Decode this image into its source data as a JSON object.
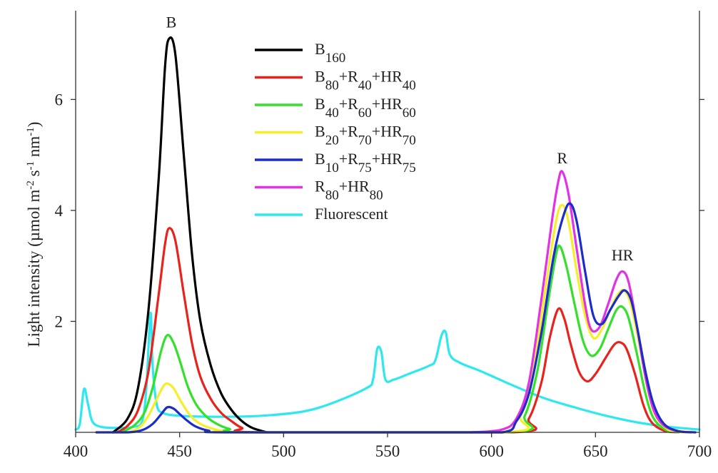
{
  "chart_data": {
    "type": "line",
    "title": "",
    "xlabel": "",
    "ylabel": "Light intensity (µmol m-2 s-1 nm-1)",
    "ylabel_parts": [
      {
        "text": "Light intensity (µmol m",
        "sup": false
      },
      {
        "text": "-2",
        "sup": true
      },
      {
        "text": " s",
        "sup": false
      },
      {
        "text": "-1",
        "sup": true
      },
      {
        "text": " nm",
        "sup": false
      },
      {
        "text": "-1",
        "sup": true
      },
      {
        "text": ")",
        "sup": false
      }
    ],
    "xlim": [
      400,
      700
    ],
    "ylim": [
      0,
      7.6
    ],
    "xticks": [
      400,
      450,
      500,
      550,
      600,
      650,
      700
    ],
    "yticks": [
      2,
      4,
      6
    ],
    "grid": false,
    "legend_position": "top-center",
    "annotations": [
      {
        "text": "B",
        "x": 446,
        "y": 7.3
      },
      {
        "text": "R",
        "x": 634,
        "y": 4.85
      },
      {
        "text": "HR",
        "x": 663,
        "y": 3.1
      }
    ],
    "series": [
      {
        "name": "B160",
        "label_parts": [
          {
            "text": "B",
            "sub": false
          },
          {
            "text": "160",
            "sub": true
          }
        ],
        "color": "#000000",
        "points": [
          [
            418,
            0
          ],
          [
            425,
            0.25
          ],
          [
            430,
            0.8
          ],
          [
            435,
            2.2
          ],
          [
            440,
            4.6
          ],
          [
            443,
            6.6
          ],
          [
            445,
            7.1
          ],
          [
            448,
            6.8
          ],
          [
            452,
            5.0
          ],
          [
            456,
            3.2
          ],
          [
            460,
            2.0
          ],
          [
            465,
            1.2
          ],
          [
            470,
            0.7
          ],
          [
            475,
            0.4
          ],
          [
            480,
            0.2
          ],
          [
            485,
            0.08
          ],
          [
            492,
            0
          ]
        ]
      },
      {
        "name": "B80+R40+HR40",
        "label_parts": [
          {
            "text": "B",
            "sub": false
          },
          {
            "text": "80",
            "sub": true
          },
          {
            "text": "+R",
            "sub": false
          },
          {
            "text": "40",
            "sub": true
          },
          {
            "text": "+HR",
            "sub": false
          },
          {
            "text": "40",
            "sub": true
          }
        ],
        "color": "#e8231c",
        "points": [
          [
            420,
            0
          ],
          [
            425,
            0.12
          ],
          [
            430,
            0.4
          ],
          [
            435,
            1.1
          ],
          [
            440,
            2.5
          ],
          [
            443,
            3.4
          ],
          [
            445,
            3.68
          ],
          [
            448,
            3.45
          ],
          [
            452,
            2.5
          ],
          [
            456,
            1.6
          ],
          [
            460,
            1.0
          ],
          [
            465,
            0.6
          ],
          [
            470,
            0.35
          ],
          [
            475,
            0.2
          ],
          [
            480,
            0.08
          ],
          [
            488,
            0
          ],
          [
            610,
            0
          ],
          [
            618,
            0.25
          ],
          [
            624,
            0.9
          ],
          [
            628,
            1.7
          ],
          [
            632,
            2.22
          ],
          [
            635,
            2.05
          ],
          [
            638,
            1.6
          ],
          [
            642,
            1.1
          ],
          [
            646,
            0.92
          ],
          [
            650,
            1.05
          ],
          [
            655,
            1.35
          ],
          [
            659,
            1.58
          ],
          [
            662,
            1.62
          ],
          [
            665,
            1.5
          ],
          [
            669,
            1.05
          ],
          [
            673,
            0.5
          ],
          [
            677,
            0.18
          ],
          [
            683,
            0.03
          ],
          [
            690,
            0
          ]
        ]
      },
      {
        "name": "B40+R60+HR60",
        "label_parts": [
          {
            "text": "B",
            "sub": false
          },
          {
            "text": "40",
            "sub": true
          },
          {
            "text": "+R",
            "sub": false
          },
          {
            "text": "60",
            "sub": true
          },
          {
            "text": "+HR",
            "sub": false
          },
          {
            "text": "60",
            "sub": true
          }
        ],
        "color": "#35e02b",
        "points": [
          [
            422,
            0
          ],
          [
            428,
            0.12
          ],
          [
            433,
            0.35
          ],
          [
            437,
            0.8
          ],
          [
            441,
            1.45
          ],
          [
            444,
            1.75
          ],
          [
            447,
            1.62
          ],
          [
            450,
            1.3
          ],
          [
            454,
            0.82
          ],
          [
            458,
            0.5
          ],
          [
            463,
            0.28
          ],
          [
            468,
            0.15
          ],
          [
            474,
            0.06
          ],
          [
            482,
            0
          ],
          [
            608,
            0
          ],
          [
            616,
            0.3
          ],
          [
            622,
            1.1
          ],
          [
            627,
            2.3
          ],
          [
            631,
            3.2
          ],
          [
            633,
            3.35
          ],
          [
            636,
            3.0
          ],
          [
            640,
            2.3
          ],
          [
            644,
            1.65
          ],
          [
            648,
            1.38
          ],
          [
            652,
            1.5
          ],
          [
            656,
            1.85
          ],
          [
            660,
            2.2
          ],
          [
            663,
            2.26
          ],
          [
            666,
            2.05
          ],
          [
            670,
            1.4
          ],
          [
            674,
            0.7
          ],
          [
            678,
            0.25
          ],
          [
            684,
            0.04
          ],
          [
            690,
            0
          ]
        ]
      },
      {
        "name": "B20+R70+HR70",
        "label_parts": [
          {
            "text": "B",
            "sub": false
          },
          {
            "text": "20",
            "sub": true
          },
          {
            "text": "+R",
            "sub": false
          },
          {
            "text": "70",
            "sub": true
          },
          {
            "text": "+HR",
            "sub": false
          },
          {
            "text": "70",
            "sub": true
          }
        ],
        "color": "#f5ee28",
        "points": [
          [
            426,
            0
          ],
          [
            431,
            0.1
          ],
          [
            435,
            0.3
          ],
          [
            439,
            0.6
          ],
          [
            442,
            0.82
          ],
          [
            444,
            0.88
          ],
          [
            447,
            0.8
          ],
          [
            450,
            0.6
          ],
          [
            454,
            0.36
          ],
          [
            458,
            0.2
          ],
          [
            463,
            0.1
          ],
          [
            470,
            0.03
          ],
          [
            478,
            0
          ],
          [
            606,
            0
          ],
          [
            614,
            0.3
          ],
          [
            620,
            1.1
          ],
          [
            626,
            2.6
          ],
          [
            631,
            3.8
          ],
          [
            634,
            4.1
          ],
          [
            637,
            3.8
          ],
          [
            641,
            2.9
          ],
          [
            645,
            2.1
          ],
          [
            649,
            1.7
          ],
          [
            653,
            1.85
          ],
          [
            657,
            2.2
          ],
          [
            661,
            2.5
          ],
          [
            664,
            2.55
          ],
          [
            667,
            2.3
          ],
          [
            671,
            1.6
          ],
          [
            675,
            0.8
          ],
          [
            679,
            0.3
          ],
          [
            685,
            0.05
          ],
          [
            692,
            0
          ]
        ]
      },
      {
        "name": "B10+R75+HR75",
        "label_parts": [
          {
            "text": "B",
            "sub": false
          },
          {
            "text": "10",
            "sub": true
          },
          {
            "text": "+R",
            "sub": false
          },
          {
            "text": "75",
            "sub": true
          },
          {
            "text": "+HR",
            "sub": false
          },
          {
            "text": "75",
            "sub": true
          }
        ],
        "color": "#1c2cc8",
        "points": [
          [
            410,
            0
          ],
          [
            425,
            0
          ],
          [
            432,
            0.04
          ],
          [
            437,
            0.15
          ],
          [
            441,
            0.32
          ],
          [
            444,
            0.45
          ],
          [
            447,
            0.43
          ],
          [
            450,
            0.33
          ],
          [
            454,
            0.2
          ],
          [
            458,
            0.1
          ],
          [
            464,
            0.03
          ],
          [
            472,
            0
          ],
          [
            570,
            0
          ],
          [
            605,
            0
          ],
          [
            612,
            0.2
          ],
          [
            618,
            0.7
          ],
          [
            624,
            1.8
          ],
          [
            630,
            3.2
          ],
          [
            635,
            3.95
          ],
          [
            638,
            4.12
          ],
          [
            641,
            3.8
          ],
          [
            645,
            2.9
          ],
          [
            649,
            2.1
          ],
          [
            653,
            1.95
          ],
          [
            657,
            2.2
          ],
          [
            661,
            2.45
          ],
          [
            664,
            2.56
          ],
          [
            667,
            2.4
          ],
          [
            670,
            1.9
          ],
          [
            674,
            1.1
          ],
          [
            678,
            0.5
          ],
          [
            683,
            0.15
          ],
          [
            690,
            0.02
          ],
          [
            698,
            0
          ]
        ]
      },
      {
        "name": "R80+HR80",
        "label_parts": [
          {
            "text": "R",
            "sub": false
          },
          {
            "text": "80",
            "sub": true
          },
          {
            "text": "+HR",
            "sub": false
          },
          {
            "text": "80",
            "sub": true
          }
        ],
        "color": "#e331e6",
        "points": [
          [
            590,
            0
          ],
          [
            605,
            0.05
          ],
          [
            612,
            0.25
          ],
          [
            618,
            0.9
          ],
          [
            624,
            2.4
          ],
          [
            629,
            3.8
          ],
          [
            632,
            4.5
          ],
          [
            634,
            4.7
          ],
          [
            637,
            4.3
          ],
          [
            641,
            3.3
          ],
          [
            645,
            2.3
          ],
          [
            648,
            1.85
          ],
          [
            652,
            1.9
          ],
          [
            656,
            2.3
          ],
          [
            660,
            2.75
          ],
          [
            663,
            2.9
          ],
          [
            666,
            2.7
          ],
          [
            670,
            1.9
          ],
          [
            674,
            1.0
          ],
          [
            678,
            0.4
          ],
          [
            683,
            0.12
          ],
          [
            690,
            0.02
          ],
          [
            696,
            0
          ]
        ]
      },
      {
        "name": "Fluorescent",
        "label_parts": [
          {
            "text": "Fluorescent",
            "sub": false
          }
        ],
        "color": "#2de8f0",
        "points": [
          [
            400,
            0.05
          ],
          [
            402,
            0.15
          ],
          [
            404,
            0.78
          ],
          [
            406,
            0.5
          ],
          [
            408,
            0.2
          ],
          [
            412,
            0.1
          ],
          [
            420,
            0.08
          ],
          [
            428,
            0.1
          ],
          [
            432,
            0.2
          ],
          [
            434,
            0.8
          ],
          [
            436,
            2.15
          ],
          [
            437,
            1.2
          ],
          [
            439,
            0.5
          ],
          [
            442,
            0.35
          ],
          [
            450,
            0.3
          ],
          [
            470,
            0.28
          ],
          [
            490,
            0.3
          ],
          [
            510,
            0.38
          ],
          [
            525,
            0.55
          ],
          [
            540,
            0.8
          ],
          [
            543,
            0.95
          ],
          [
            545,
            1.5
          ],
          [
            547,
            1.45
          ],
          [
            549,
            0.95
          ],
          [
            553,
            0.95
          ],
          [
            560,
            1.05
          ],
          [
            570,
            1.2
          ],
          [
            573,
            1.3
          ],
          [
            576,
            1.75
          ],
          [
            578,
            1.8
          ],
          [
            580,
            1.4
          ],
          [
            585,
            1.25
          ],
          [
            595,
            1.1
          ],
          [
            610,
            0.85
          ],
          [
            625,
            0.62
          ],
          [
            640,
            0.45
          ],
          [
            655,
            0.3
          ],
          [
            670,
            0.18
          ],
          [
            685,
            0.1
          ],
          [
            700,
            0.05
          ]
        ]
      }
    ]
  }
}
